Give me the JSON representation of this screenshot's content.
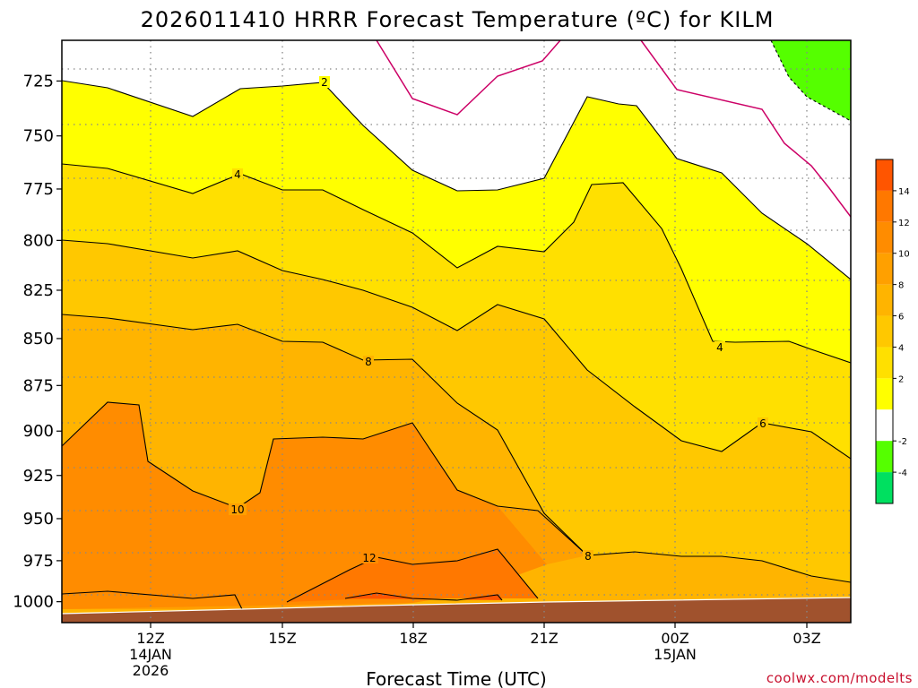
{
  "title": "2026011410 HRRR Forecast Temperature (ºC) for KILM",
  "credit": "coolwx.com/modelts",
  "chart_data": {
    "type": "contour",
    "title": "2026011410 HRRR Forecast Temperature (ºC) for KILM",
    "xlabel": "Forecast Time (UTC)",
    "ylabel": "",
    "y_scale": "log-pressure (hPa, inverted)",
    "ylim": [
      1013,
      707
    ],
    "xlim": [
      "2026-01-14 10Z",
      "2026-01-15 04Z"
    ],
    "y_ticks": [
      "725",
      "750",
      "775",
      "800",
      "825",
      "850",
      "875",
      "900",
      "925",
      "950",
      "975",
      "1000"
    ],
    "x_ticks": [
      {
        "line1": "12Z",
        "line2": "14JAN",
        "line3": "2026"
      },
      {
        "line1": "15Z",
        "line2": "",
        "line3": ""
      },
      {
        "line1": "18Z",
        "line2": "",
        "line3": ""
      },
      {
        "line1": "21Z",
        "line2": "",
        "line3": ""
      },
      {
        "line1": "00Z",
        "line2": "15JAN",
        "line3": ""
      },
      {
        "line1": "03Z",
        "line2": "",
        "line3": ""
      }
    ],
    "grid": true,
    "contour_interval_C": 2,
    "contour_labels": [
      "2",
      "4",
      "4",
      "6",
      "8",
      "8",
      "10",
      "12"
    ],
    "colorbar": {
      "placement": "right",
      "ticks": [
        "14",
        "12",
        "10",
        "8",
        "6",
        "4",
        "2",
        "-2",
        "-4"
      ],
      "bins": [
        {
          "range": "14 to 16",
          "color": "#ff5500"
        },
        {
          "range": "12 to 14",
          "color": "#ff7800"
        },
        {
          "range": "10 to 12",
          "color": "#ff8c00"
        },
        {
          "range": "8 to 10",
          "color": "#ffa000"
        },
        {
          "range": "6 to 8",
          "color": "#ffb400"
        },
        {
          "range": "4 to 6",
          "color": "#ffc800"
        },
        {
          "range": "2 to 4",
          "color": "#ffe000"
        },
        {
          "range": "0 to 2",
          "color": "#ffff00"
        },
        {
          "range": "-2 to 0",
          "color": "#ffffff"
        },
        {
          "range": "-4 to -2",
          "color": "#55ff00"
        },
        {
          "range": "below -4",
          "color": "#00e060"
        }
      ]
    },
    "temperature_profiles": [
      {
        "time": "10Z",
        "p975": 11,
        "p950": 10,
        "p900": 9,
        "p850": 7,
        "p800": 5,
        "p775": 4,
        "p750": 3,
        "p725": 2
      },
      {
        "time": "12Z",
        "p975": 12,
        "p950": 11,
        "p900": 10,
        "p850": 7,
        "p800": 5,
        "p775": 4,
        "p750": 3,
        "p725": 1
      },
      {
        "time": "15Z",
        "p975": 12,
        "p950": 11,
        "p900": 10,
        "p850": 7,
        "p800": 5,
        "p775": 4,
        "p750": 3,
        "p725": 1
      },
      {
        "time": "18Z",
        "p975": 13,
        "p950": 11,
        "p900": 10,
        "p850": 7,
        "p800": 4,
        "p775": 3,
        "p750": 1,
        "p725": 0
      },
      {
        "time": "21Z",
        "p975": 11,
        "p950": 10,
        "p900": 8,
        "p850": 6,
        "p800": 4,
        "p775": 3,
        "p750": 2,
        "p725": 0
      },
      {
        "time": "00Z",
        "p975": 9,
        "p950": 8,
        "p900": 6,
        "p850": 5,
        "p800": 4,
        "p775": 2,
        "p750": 1,
        "p725": -1
      },
      {
        "time": "03Z",
        "p975": 9,
        "p950": 7,
        "p900": 6,
        "p850": 4,
        "p800": 2,
        "p775": 1,
        "p750": -1,
        "p725": -2
      }
    ]
  },
  "colors": {
    "contour_line": "#000000",
    "freezing_line": "#cc0066",
    "ground": "#a0522d",
    "grid": "#888888"
  }
}
